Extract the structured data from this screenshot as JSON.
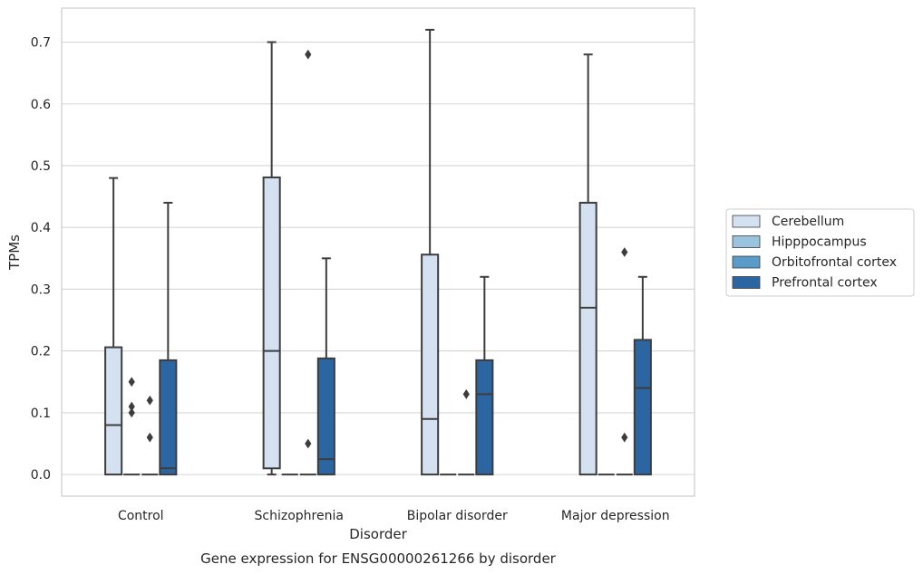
{
  "caption": "Gene expression for ENSG00000261266 by disorder",
  "chart_data": {
    "type": "box",
    "title": "",
    "xlabel": "Disorder",
    "ylabel": "TPMs",
    "ylim": [
      -0.035,
      0.755
    ],
    "yticks": [
      0.0,
      0.1,
      0.2,
      0.3,
      0.4,
      0.5,
      0.6,
      0.7
    ],
    "ytick_labels": [
      "0.0",
      "0.1",
      "0.2",
      "0.3",
      "0.4",
      "0.5",
      "0.6",
      "0.7"
    ],
    "grid": "horizontal",
    "legend_position": "outside-right",
    "categories": [
      "Control",
      "Schizophrenia",
      "Bipolar disorder",
      "Major depression"
    ],
    "series": [
      {
        "name": "Cerebellum",
        "color": "#d3e1f1",
        "boxes": [
          {
            "min": 0.0,
            "q1": 0.0,
            "median": 0.08,
            "q3": 0.206,
            "max": 0.48,
            "outliers": []
          },
          {
            "min": 0.0,
            "q1": 0.01,
            "median": 0.2,
            "q3": 0.481,
            "max": 0.7,
            "outliers": []
          },
          {
            "min": 0.0,
            "q1": 0.0,
            "median": 0.09,
            "q3": 0.356,
            "max": 0.72,
            "outliers": []
          },
          {
            "min": 0.0,
            "q1": 0.0,
            "median": 0.27,
            "q3": 0.44,
            "max": 0.68,
            "outliers": []
          }
        ]
      },
      {
        "name": "Hipppocampus",
        "color": "#9ac3de",
        "boxes": [
          {
            "min": 0.0,
            "q1": 0.0,
            "median": 0.0,
            "q3": 0.0,
            "max": 0.0,
            "outliers": [
              0.15,
              0.11,
              0.1
            ]
          },
          {
            "min": 0.0,
            "q1": 0.0,
            "median": 0.0,
            "q3": 0.0,
            "max": 0.0,
            "outliers": []
          },
          {
            "min": 0.0,
            "q1": 0.0,
            "median": 0.0,
            "q3": 0.0,
            "max": 0.0,
            "outliers": []
          },
          {
            "min": 0.0,
            "q1": 0.0,
            "median": 0.0,
            "q3": 0.0,
            "max": 0.0,
            "outliers": []
          }
        ]
      },
      {
        "name": "Orbitofrontal cortex",
        "color": "#5a9bc9",
        "boxes": [
          {
            "min": 0.0,
            "q1": 0.0,
            "median": 0.0,
            "q3": 0.0,
            "max": 0.0,
            "outliers": [
              0.12,
              0.06
            ]
          },
          {
            "min": 0.0,
            "q1": 0.0,
            "median": 0.0,
            "q3": 0.0,
            "max": 0.0,
            "outliers": [
              0.68,
              0.05
            ]
          },
          {
            "min": 0.0,
            "q1": 0.0,
            "median": 0.0,
            "q3": 0.0,
            "max": 0.0,
            "outliers": [
              0.13
            ]
          },
          {
            "min": 0.0,
            "q1": 0.0,
            "median": 0.0,
            "q3": 0.0,
            "max": 0.0,
            "outliers": [
              0.36,
              0.06
            ]
          }
        ]
      },
      {
        "name": "Prefrontal cortex",
        "color": "#2b66a3",
        "boxes": [
          {
            "min": 0.0,
            "q1": 0.0,
            "median": 0.01,
            "q3": 0.185,
            "max": 0.44,
            "outliers": []
          },
          {
            "min": 0.0,
            "q1": 0.0,
            "median": 0.025,
            "q3": 0.188,
            "max": 0.35,
            "outliers": []
          },
          {
            "min": 0.0,
            "q1": 0.0,
            "median": 0.13,
            "q3": 0.185,
            "max": 0.32,
            "outliers": []
          },
          {
            "min": 0.0,
            "q1": 0.0,
            "median": 0.14,
            "q3": 0.218,
            "max": 0.32,
            "outliers": []
          }
        ]
      }
    ]
  }
}
